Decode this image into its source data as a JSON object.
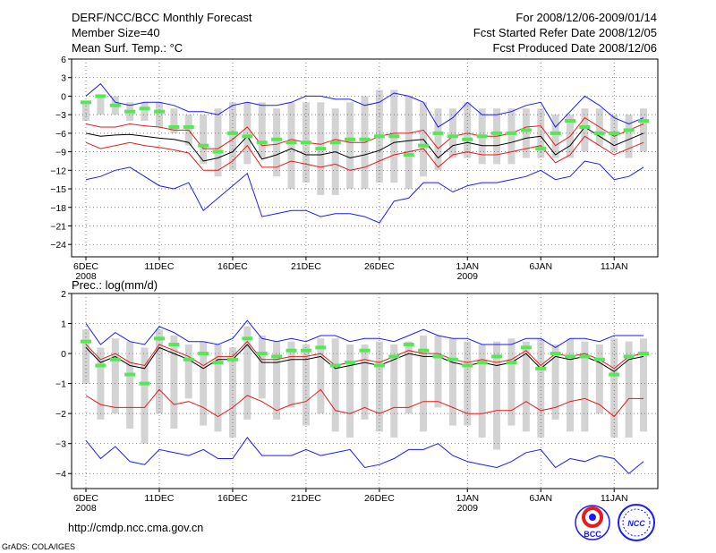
{
  "header": {
    "title": "DERF/NCC/BCC Monthly Forecast",
    "member_size": "Member Size=40",
    "variable": "Mean Surf. Temp.: °C",
    "period": "For 2008/12/06-2009/01/14",
    "started": "Fcst Started Refer Date 2008/12/05",
    "produced": "Fcst Produced Date 2008/12/06"
  },
  "footer": {
    "url": "http://cmdp.ncc.cma.gov.cn",
    "grads": "GrADS: COLA/IGES",
    "logo_bcc": "BCC",
    "logo_ncc": "NCC"
  },
  "colors": {
    "box": "#d3d3d3",
    "green": "#55e855",
    "blue": "#1a1aff",
    "red": "#e81a1a",
    "median": "#000000"
  },
  "chart_data": [
    {
      "type": "box",
      "title": "Mean Surf. Temp.: °C",
      "ylim": [
        -26,
        6
      ],
      "yticks": [
        6,
        3,
        0,
        -3,
        -6,
        -9,
        -12,
        -15,
        -18,
        -21,
        -24
      ],
      "xticks": [
        {
          "day": 0,
          "label": "6DEC",
          "sub": "2008"
        },
        {
          "day": 5,
          "label": "11DEC",
          "sub": ""
        },
        {
          "day": 10,
          "label": "16DEC",
          "sub": ""
        },
        {
          "day": 15,
          "label": "21DEC",
          "sub": ""
        },
        {
          "day": 20,
          "label": "26DEC",
          "sub": ""
        },
        {
          "day": 26,
          "label": "1JAN",
          "sub": "2009"
        },
        {
          "day": 31,
          "label": "6JAN",
          "sub": ""
        },
        {
          "day": 36,
          "label": "11JAN",
          "sub": ""
        }
      ],
      "n_days": 39,
      "box_low": [
        -4,
        -3,
        -3,
        -4,
        -4,
        -5,
        -6,
        -8,
        -11,
        -13,
        -12,
        -11,
        -10,
        -13,
        -15,
        -14,
        -16,
        -16,
        -15,
        -15,
        -14,
        -14,
        -15,
        -13,
        -12,
        -10,
        -10,
        -11,
        -11,
        -11,
        -10,
        -10,
        -10,
        -10,
        -9,
        -8,
        -9,
        -10,
        -9
      ],
      "box_high": [
        -1,
        0,
        0,
        -1,
        -1,
        -1,
        -2,
        -3,
        -3,
        -2,
        -1,
        -1,
        -1,
        -2,
        -1,
        -1,
        -1,
        -2,
        -1,
        0,
        1,
        1,
        0,
        -1,
        -2,
        -2,
        -1,
        -2,
        -2,
        -2,
        -2,
        -2,
        -3,
        -3,
        -2,
        -2,
        -3,
        -3,
        -2
      ],
      "green": [
        -1,
        0,
        -1.5,
        -2.5,
        -2,
        -2.5,
        -5,
        -5,
        -8,
        -9,
        -6,
        -6.5,
        -7.5,
        -7,
        -7.5,
        -7.5,
        -8.5,
        -7.5,
        -7,
        -7,
        -6.5,
        -6.5,
        -9.5,
        -8,
        -6,
        -6.5,
        -7,
        -6.5,
        -6,
        -6,
        -5.5,
        -8.5,
        -6,
        -4,
        -5,
        -6,
        -6,
        -5.5,
        -4
      ],
      "median": [
        -6,
        -6.5,
        -6.3,
        -6.2,
        -6.5,
        -6.8,
        -7,
        -7.5,
        -10.5,
        -10,
        -9,
        -6.5,
        -10.2,
        -9.5,
        -8.5,
        -9.5,
        -9.5,
        -9,
        -10,
        -9.5,
        -8.8,
        -7.5,
        -7.2,
        -7.0,
        -10.0,
        -8.0,
        -7.5,
        -8.0,
        -8.0,
        -7.5,
        -6.8,
        -6.5,
        -9.5,
        -8.0,
        -5.0,
        -6.5,
        -8.0,
        -7.0,
        -6.0
      ],
      "red_upper": [
        -4.5,
        -5,
        -5,
        -4.5,
        -4.8,
        -5,
        -5.5,
        -5.5,
        -8.5,
        -8.5,
        -7,
        -5,
        -8,
        -7.8,
        -7,
        -7.5,
        -7.8,
        -7,
        -7.5,
        -7.5,
        -6.5,
        -6,
        -6,
        -5.5,
        -8.5,
        -6.5,
        -6,
        -6.5,
        -6.5,
        -6,
        -5,
        -4.8,
        -8,
        -6.5,
        -3.5,
        -5,
        -6.5,
        -5.5,
        -4.5
      ],
      "red_lower": [
        -7.5,
        -8.5,
        -8,
        -7.5,
        -8,
        -8.3,
        -8.7,
        -9.2,
        -12,
        -12,
        -10.5,
        -8,
        -11.5,
        -11.5,
        -10.5,
        -11,
        -11.5,
        -11,
        -12,
        -11.5,
        -10.5,
        -9.5,
        -9,
        -8.5,
        -11.5,
        -9.5,
        -9,
        -9.5,
        -9.5,
        -9,
        -8.5,
        -8,
        -10.8,
        -9.5,
        -6.5,
        -8,
        -9.5,
        -8.5,
        -7.5
      ],
      "blue_upper": [
        0,
        2,
        -1,
        -1.5,
        -1,
        -1,
        -1.5,
        -2.5,
        -2.5,
        -3,
        -1.5,
        -1,
        -1.5,
        -1.5,
        -1,
        0,
        0,
        -0.5,
        -0.5,
        -1.5,
        -1,
        0.5,
        0,
        -1,
        -5,
        -3.5,
        -1,
        -3,
        -3,
        -2.5,
        -1.5,
        -1,
        -5,
        -2.5,
        0,
        -1.5,
        -3.5,
        -4.5,
        -3.5
      ],
      "blue_lower": [
        -13.5,
        -13,
        -12,
        -11.5,
        -13,
        -14.5,
        -15,
        -14,
        -18.5,
        -16.5,
        -14.5,
        -12.5,
        -19.5,
        -19,
        -18.5,
        -18.5,
        -19.5,
        -19,
        -19,
        -19.5,
        -20.5,
        -17,
        -16.5,
        -14,
        -14,
        -15.5,
        -14.5,
        -14,
        -14,
        -13.5,
        -13,
        -12,
        -13.5,
        -13,
        -10.5,
        -11,
        -13.5,
        -13,
        -11.5
      ]
    },
    {
      "type": "box",
      "title": "Prec.: log(mm/d)",
      "ylim": [
        -4.5,
        2
      ],
      "yticks": [
        2,
        1,
        0,
        -1,
        -2,
        -3,
        -4
      ],
      "xticks": [
        {
          "day": 0,
          "label": "6DEC",
          "sub": "2008"
        },
        {
          "day": 5,
          "label": "11DEC",
          "sub": ""
        },
        {
          "day": 10,
          "label": "16DEC",
          "sub": ""
        },
        {
          "day": 15,
          "label": "21DEC",
          "sub": ""
        },
        {
          "day": 20,
          "label": "26DEC",
          "sub": ""
        },
        {
          "day": 26,
          "label": "1JAN",
          "sub": "2009"
        },
        {
          "day": 31,
          "label": "6JAN",
          "sub": ""
        },
        {
          "day": 36,
          "label": "11JAN",
          "sub": ""
        }
      ],
      "n_days": 39,
      "box_low": [
        -1,
        -2.2,
        -2,
        -2.5,
        -3,
        -2,
        -2.5,
        -1.5,
        -2.4,
        -2.6,
        -2.8,
        -2.2,
        -1.5,
        -2.2,
        -1.8,
        -2.4,
        -2,
        -2.6,
        -2.8,
        -2.2,
        -2.6,
        -2.8,
        -2,
        -2.6,
        -1.8,
        -2.4,
        -2.4,
        -2.8,
        -3.2,
        -2.4,
        -2.6,
        -2.8,
        -2.2,
        -2.6,
        -2.6,
        -2,
        -2.8,
        -2.8,
        -2.6
      ],
      "box_high": [
        0.8,
        0.2,
        0.5,
        0.4,
        0.2,
        0.8,
        0.6,
        0.3,
        0.4,
        0.3,
        0.2,
        0.9,
        0.6,
        0.4,
        0.4,
        0.3,
        0.5,
        0.5,
        0.3,
        0.3,
        0.4,
        0.3,
        0.4,
        0.6,
        0.6,
        0.5,
        0.4,
        0.3,
        0.4,
        0.5,
        0.4,
        0.5,
        0.3,
        0.5,
        0.4,
        0.3,
        0.5,
        0.4,
        0.5
      ],
      "green": [
        0.4,
        -0.4,
        -0.2,
        -0.7,
        -1.0,
        0.5,
        0.3,
        -0.2,
        0.0,
        -0.3,
        -0.2,
        0.5,
        0.0,
        -0.1,
        0.1,
        0.1,
        0.2,
        -0.4,
        -0.3,
        0.1,
        -0.4,
        -0.1,
        0.3,
        0.1,
        -0.1,
        -0.2,
        -0.4,
        -0.3,
        -0.1,
        -0.3,
        0.2,
        -0.5,
        0.0,
        -0.1,
        -0.1,
        -0.2,
        -0.7,
        -0.1,
        0.0
      ],
      "median": [
        0.2,
        -0.3,
        -0.1,
        -0.4,
        -0.5,
        0.2,
        0.0,
        -0.2,
        -0.5,
        -0.2,
        -0.2,
        0.3,
        -0.3,
        -0.3,
        -0.2,
        -0.2,
        -0.1,
        -0.5,
        -0.4,
        -0.3,
        -0.4,
        -0.2,
        0.0,
        -0.1,
        -0.1,
        -0.3,
        -0.4,
        -0.3,
        -0.4,
        -0.3,
        0.0,
        -0.5,
        -0.1,
        -0.2,
        -0.1,
        -0.3,
        -0.6,
        -0.2,
        -0.1
      ],
      "red_upper": [
        0.3,
        -0.2,
        0.0,
        -0.3,
        -0.4,
        0.3,
        0.1,
        -0.1,
        -0.4,
        -0.1,
        -0.1,
        0.4,
        -0.2,
        -0.2,
        -0.1,
        -0.1,
        0.0,
        -0.4,
        -0.3,
        -0.2,
        -0.3,
        -0.1,
        0.1,
        0.0,
        0.0,
        -0.2,
        -0.3,
        -0.2,
        -0.3,
        -0.2,
        0.1,
        -0.4,
        0.0,
        -0.1,
        0.0,
        -0.2,
        -0.5,
        -0.1,
        0.0
      ],
      "red_lower": [
        -1.4,
        -1.7,
        -1.8,
        -1.8,
        -1.8,
        -1.2,
        -1.7,
        -1.6,
        -1.8,
        -2.1,
        -1.8,
        -1.4,
        -1.6,
        -1.9,
        -1.7,
        -1.6,
        -1.2,
        -1.9,
        -2.0,
        -1.8,
        -2.0,
        -1.8,
        -1.8,
        -1.6,
        -1.6,
        -1.8,
        -2.0,
        -2.0,
        -1.9,
        -1.9,
        -1.6,
        -1.9,
        -1.8,
        -1.6,
        -1.5,
        -1.7,
        -2.1,
        -1.5,
        -1.5
      ],
      "blue_upper": [
        1.0,
        0.3,
        0.7,
        0.4,
        0.3,
        0.9,
        0.7,
        0.4,
        0.4,
        0.3,
        0.5,
        1.1,
        0.5,
        0.4,
        0.5,
        0.4,
        0.6,
        0.6,
        0.4,
        0.5,
        0.5,
        0.4,
        0.6,
        0.8,
        0.6,
        0.5,
        0.5,
        0.3,
        0.3,
        0.3,
        0.5,
        0.5,
        0.2,
        0.5,
        0.5,
        0.4,
        0.6,
        0.6,
        0.6
      ],
      "blue_lower": [
        -2.9,
        -3.5,
        -3.1,
        -3.6,
        -3.7,
        -3.2,
        -3.3,
        -3.4,
        -3.2,
        -3.5,
        -3.5,
        -2.8,
        -3.4,
        -3.4,
        -3.4,
        -3.2,
        -3.4,
        -3.3,
        -3.2,
        -3.8,
        -3.7,
        -3.5,
        -3.2,
        -3.2,
        -3.0,
        -3.4,
        -3.6,
        -3.7,
        -3.8,
        -3.6,
        -3.3,
        -3.2,
        -3.8,
        -3.5,
        -3.6,
        -3.4,
        -3.5,
        -4.0,
        -3.6
      ]
    }
  ]
}
